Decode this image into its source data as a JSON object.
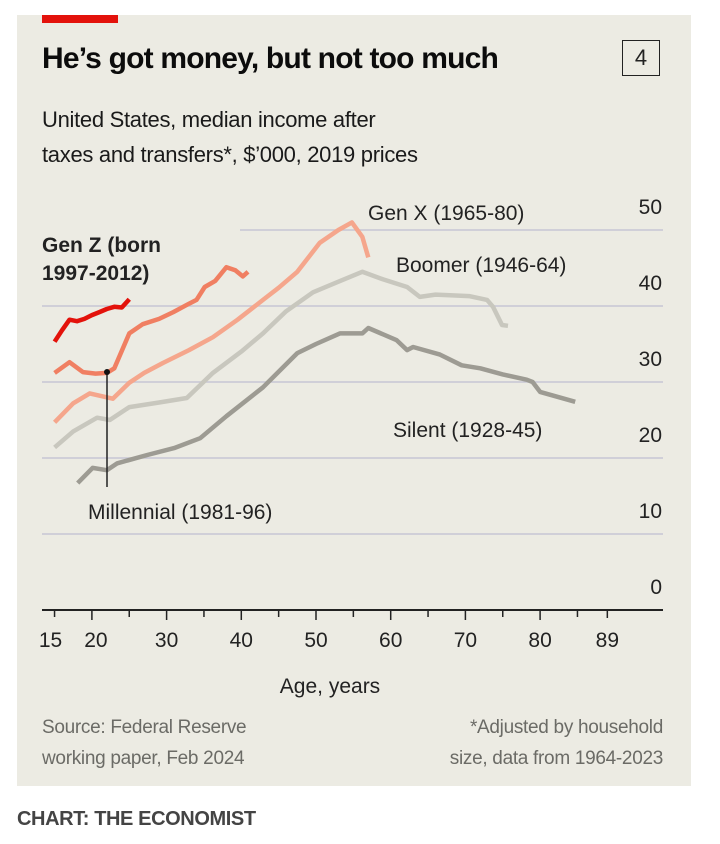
{
  "header": {
    "title": "He’s got money, but not too much",
    "badge": "4",
    "subtitle_line1": "United States, median income after",
    "subtitle_line2": "taxes and transfers*, $’000, 2019 prices"
  },
  "footer": {
    "source_line1": "Source: Federal Reserve",
    "source_line2": "working paper, Feb 2024",
    "note_line1": "*Adjusted by household",
    "note_line2": "size, data from 1964-2023",
    "credit": "CHART: THE ECONOMIST"
  },
  "chart_data": {
    "type": "line",
    "title": "He’s got money, but not too much",
    "xlabel": "Age, years",
    "ylabel": "$’000, 2019 prices",
    "xlim": [
      15,
      89
    ],
    "ylim": [
      0,
      50
    ],
    "x_ticks": [
      "15",
      "20",
      "30",
      "40",
      "50",
      "60",
      "70",
      "80",
      "89"
    ],
    "y_ticks": [
      "0",
      "10",
      "20",
      "30",
      "40",
      "50"
    ],
    "grid": true,
    "series": [
      {
        "name": "Silent (1928-45)",
        "color": "#9d9b93",
        "points": [
          [
            18.1,
            16.7
          ],
          [
            20.1,
            18.7
          ],
          [
            22,
            18.4
          ],
          [
            23.4,
            19.3
          ],
          [
            27.4,
            20.4
          ],
          [
            31,
            21.3
          ],
          [
            34.5,
            22.6
          ],
          [
            38,
            25.5
          ],
          [
            42.9,
            29.3
          ],
          [
            47.5,
            33.8
          ],
          [
            50,
            35
          ],
          [
            53.2,
            36.4
          ],
          [
            56.2,
            36.4
          ],
          [
            57,
            37.1
          ],
          [
            60.8,
            35.5
          ],
          [
            62.2,
            34.2
          ],
          [
            63,
            34.6
          ],
          [
            66.6,
            33.6
          ],
          [
            69.5,
            32.2
          ],
          [
            72,
            31.8
          ],
          [
            75,
            31
          ],
          [
            78.2,
            30.3
          ],
          [
            79,
            30
          ],
          [
            80,
            28.7
          ],
          [
            84.7,
            27.4
          ]
        ]
      },
      {
        "name": "Boomer (1946-64)",
        "color": "#c8c7be",
        "points": [
          [
            15,
            21.4
          ],
          [
            17.5,
            23.5
          ],
          [
            20.7,
            25.3
          ],
          [
            22.4,
            25
          ],
          [
            25,
            26.7
          ],
          [
            29,
            27.3
          ],
          [
            32.7,
            27.9
          ],
          [
            36.2,
            31.2
          ],
          [
            40,
            34
          ],
          [
            42.9,
            36.4
          ],
          [
            46,
            39.3
          ],
          [
            49.6,
            41.8
          ],
          [
            53,
            43.2
          ],
          [
            56.2,
            44.5
          ],
          [
            59,
            43.5
          ],
          [
            62.2,
            42.5
          ],
          [
            63.9,
            41.2
          ],
          [
            66,
            41.5
          ],
          [
            68.3,
            41.4
          ],
          [
            70.5,
            41.3
          ],
          [
            72.9,
            40.8
          ],
          [
            73.7,
            39.9
          ],
          [
            74.9,
            37.5
          ],
          [
            75.7,
            37.4
          ]
        ]
      },
      {
        "name": "Gen X (1965-80)",
        "color": "#f5a68c",
        "points": [
          [
            15,
            24.7
          ],
          [
            17.5,
            27.2
          ],
          [
            19.7,
            28.5
          ],
          [
            22.8,
            27.8
          ],
          [
            25,
            29.9
          ],
          [
            27,
            31.2
          ],
          [
            29.5,
            32.5
          ],
          [
            33,
            34.2
          ],
          [
            36.2,
            35.9
          ],
          [
            39.5,
            38.2
          ],
          [
            42.9,
            40.8
          ],
          [
            45,
            42.4
          ],
          [
            47.5,
            44.5
          ],
          [
            50.5,
            48.3
          ],
          [
            53,
            50
          ],
          [
            54.8,
            51
          ],
          [
            56.2,
            49.1
          ],
          [
            57,
            46.4
          ]
        ]
      },
      {
        "name": "Millennial (1981-96)",
        "color": "#f07f62",
        "points": [
          [
            15,
            31.2
          ],
          [
            17,
            32.6
          ],
          [
            18.8,
            31.3
          ],
          [
            20.5,
            31.1
          ],
          [
            22,
            31.2
          ],
          [
            23,
            31.8
          ],
          [
            25,
            36.4
          ],
          [
            26.8,
            37.6
          ],
          [
            29,
            38.3
          ],
          [
            30.9,
            39.2
          ],
          [
            33,
            40.3
          ],
          [
            34,
            40.8
          ],
          [
            35.1,
            42.5
          ],
          [
            36.5,
            43.3
          ],
          [
            38,
            45.1
          ],
          [
            39.2,
            44.7
          ],
          [
            40.2,
            43.9
          ],
          [
            40.9,
            44.5
          ]
        ]
      },
      {
        "name": "Gen Z (born 1997-2012)",
        "color": "#e3120b",
        "points": [
          [
            15,
            35.3
          ],
          [
            16,
            36.8
          ],
          [
            17,
            38.2
          ],
          [
            18,
            38
          ],
          [
            19,
            38.3
          ],
          [
            20,
            38.8
          ],
          [
            21,
            39.2
          ],
          [
            22,
            39.6
          ],
          [
            23,
            39.9
          ],
          [
            24,
            39.8
          ],
          [
            25,
            40.9
          ]
        ]
      }
    ],
    "labels": {
      "genz_line1": "Gen Z (born",
      "genz_line2": "1997-2012)",
      "millennial": "Millennial (1981-96)",
      "genx": "Gen X (1965-80)",
      "boomer": "Boomer (1946-64)",
      "silent": "Silent (1928-45)"
    },
    "annotation": {
      "series": "Millennial (1981-96)",
      "point": [
        22,
        31.2
      ]
    }
  }
}
